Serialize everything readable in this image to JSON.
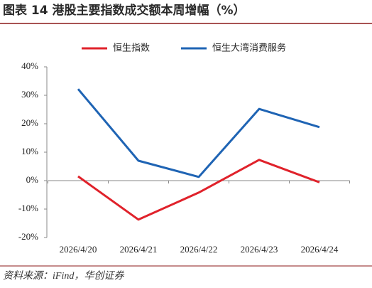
{
  "title": "图表 14 港股主要指数成交额本周增幅（%）",
  "source": "资料来源：iFind，华创证券",
  "chart_data": {
    "type": "line",
    "categories": [
      "2026/4/20",
      "2026/4/21",
      "2026/4/22",
      "2026/4/23",
      "2026/4/24"
    ],
    "series": [
      {
        "name": "恒生指数",
        "color": "#e0222b",
        "values": [
          1.5,
          -13.7,
          -4.2,
          7.3,
          -0.6
        ]
      },
      {
        "name": "恒生大湾消费服务",
        "color": "#1f64b4",
        "values": [
          32.2,
          7.0,
          1.3,
          25.2,
          18.8
        ]
      }
    ],
    "ylim": [
      -20,
      40
    ],
    "yticks": [
      {
        "value": -20,
        "label": "-20%"
      },
      {
        "value": -10,
        "label": "-10%"
      },
      {
        "value": 0,
        "label": "0%"
      },
      {
        "value": 10,
        "label": "10%"
      },
      {
        "value": 20,
        "label": "20%"
      },
      {
        "value": 30,
        "label": "30%"
      },
      {
        "value": 40,
        "label": "40%"
      }
    ],
    "legend": "top"
  }
}
